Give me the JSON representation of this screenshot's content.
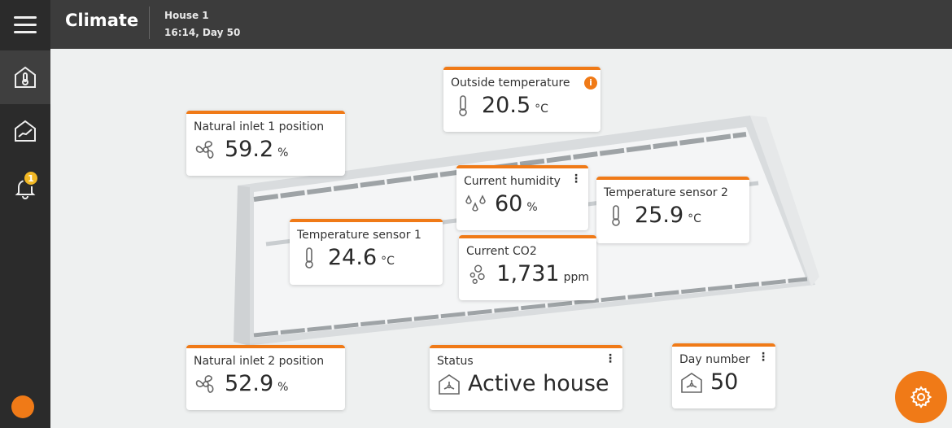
{
  "header": {
    "title": "Climate",
    "house": "House 1",
    "time": "16:14, Day 50"
  },
  "sidebar": {
    "items": [
      {
        "icon": "house-thermometer-icon",
        "active": true
      },
      {
        "icon": "house-chart-icon"
      },
      {
        "icon": "bell-icon",
        "badge": "1"
      }
    ]
  },
  "accent": "#f07a17",
  "cards": {
    "outside": {
      "label": "Outside temperature",
      "value": "20.5",
      "unit": "°C",
      "icon": "thermometer-icon"
    },
    "inlet1": {
      "label": "Natural inlet 1 position",
      "value": "59.2",
      "unit": "%",
      "icon": "fan-icon"
    },
    "humidity": {
      "label": "Current humidity",
      "value": "60",
      "unit": "%",
      "icon": "droplets-icon"
    },
    "temp2": {
      "label": "Temperature sensor 2",
      "value": "25.9",
      "unit": "°C",
      "icon": "thermometer-icon"
    },
    "temp1": {
      "label": "Temperature sensor 1",
      "value": "24.6",
      "unit": "°C",
      "icon": "thermometer-icon"
    },
    "co2": {
      "label": "Current CO2",
      "value": "1,731",
      "unit": "ppm",
      "icon": "bubbles-icon"
    },
    "inlet2": {
      "label": "Natural inlet 2 position",
      "value": "52.9",
      "unit": "%",
      "icon": "fan-icon"
    },
    "status": {
      "label": "Status",
      "value": "Active house",
      "icon": "house-fan-icon"
    },
    "day": {
      "label": "Day number",
      "value": "50",
      "icon": "house-fan-icon"
    }
  }
}
